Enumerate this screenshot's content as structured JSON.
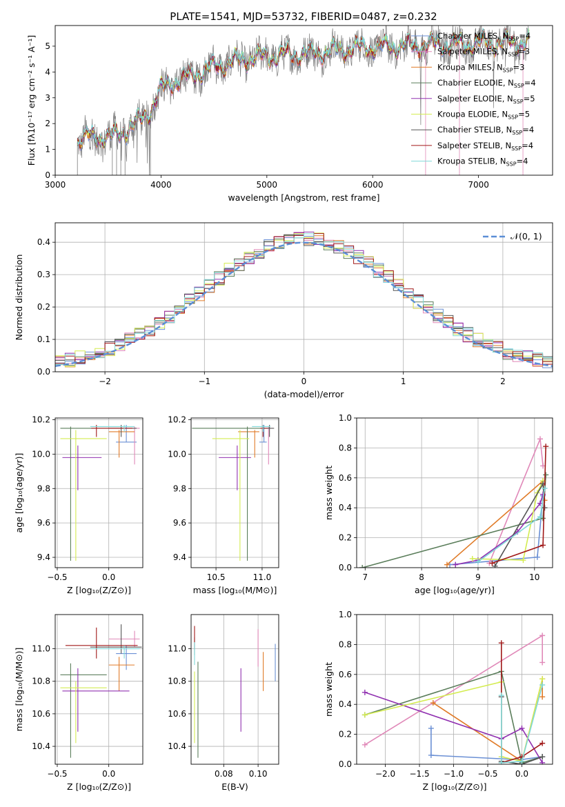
{
  "figure_title": "PLATE=1541, MJD=53732, FIBERID=0487, z=0.232",
  "model_colors": {
    "Chabrier MILES": "#6a8fd4",
    "Salpeter MILES": "#e088b8",
    "Kroupa MILES": "#e07b28",
    "Chabrier ELODIE": "#5a7d5a",
    "Salpeter ELODIE": "#9030b0",
    "Kroupa ELODIE": "#d4ec50",
    "Chabrier STELIB": "#555555",
    "Salpeter STELIB": "#a01818",
    "Kroupa STELIB": "#80d8d8"
  },
  "chart_data": [
    {
      "id": "spectrum",
      "type": "line",
      "xlabel": "wavelength [Angstrom, rest frame]",
      "ylabel": "Flux [fλ10⁻¹⁷ erg cm⁻² s⁻¹ A⁻¹]",
      "xlim": [
        3000,
        7700
      ],
      "ylim": [
        0,
        5.8
      ],
      "xticks": [
        3000,
        4000,
        5000,
        6000,
        7000
      ],
      "yticks": [
        0,
        1,
        2,
        3,
        4,
        5
      ],
      "legend_position": "top-right",
      "legend": [
        {
          "label": "Chabrier MILES, N",
          "sub": "SSP",
          "tail": "=4",
          "color": "#6a8fd4"
        },
        {
          "label": "Salpeter MILES, N",
          "sub": "SSP",
          "tail": "=3",
          "color": "#e088b8"
        },
        {
          "label": "Kroupa MILES, N",
          "sub": "SSP",
          "tail": "=3",
          "color": "#e07b28"
        },
        {
          "label": "Chabrier ELODIE, N",
          "sub": "SSP",
          "tail": "=4",
          "color": "#5a7d5a"
        },
        {
          "label": "Salpeter ELODIE, N",
          "sub": "SSP",
          "tail": "=5",
          "color": "#9030b0"
        },
        {
          "label": "Kroupa ELODIE, N",
          "sub": "SSP",
          "tail": "=5",
          "color": "#d4ec50"
        },
        {
          "label": "Chabrier STELIB, N",
          "sub": "SSP",
          "tail": "=4",
          "color": "#555555"
        },
        {
          "label": "Salpeter STELIB, N",
          "sub": "SSP",
          "tail": "=4",
          "color": "#a01818"
        },
        {
          "label": "Kroupa STELIB, N",
          "sub": "SSP",
          "tail": "=4",
          "color": "#80d8d8"
        }
      ],
      "continuum": {
        "x": [
          3220,
          3300,
          3400,
          3500,
          3600,
          3700,
          3800,
          3900,
          4000,
          4100,
          4200,
          4300,
          4400,
          4500,
          4600,
          4800,
          5000,
          5200,
          5400,
          5600,
          5800,
          6000,
          6200,
          6400,
          6600,
          6800,
          7000,
          7200,
          7400
        ],
        "y": [
          1.3,
          1.45,
          1.5,
          1.45,
          1.6,
          1.8,
          2.1,
          2.5,
          3.3,
          3.6,
          3.7,
          3.9,
          4.0,
          4.2,
          4.3,
          4.5,
          4.6,
          4.65,
          4.7,
          4.8,
          4.9,
          4.95,
          5.0,
          5.0,
          5.05,
          5.05,
          5.1,
          5.1,
          5.15
        ]
      },
      "data_x_range": [
        3210,
        7480
      ]
    },
    {
      "id": "residuals",
      "type": "histogram",
      "xlabel": "(data-model)/error",
      "ylabel": "Normed distribution",
      "xlim": [
        -2.5,
        2.5
      ],
      "ylim": [
        0,
        0.46
      ],
      "xticks": [
        -2,
        -1,
        0,
        1,
        2
      ],
      "yticks": [
        0.0,
        0.1,
        0.2,
        0.3,
        0.4
      ],
      "legend": "𝒩(0, 1)",
      "legend_position": "top-right",
      "reference_curve": "normal(0,1)",
      "bin_width": 0.1
    },
    {
      "id": "age_vs_Z",
      "type": "errorbar",
      "xlabel": "Z [log₁₀(Z/Z⊙)]",
      "ylabel": "age  [log₁₀(age/yr)]",
      "xlim": [
        -0.52,
        0.33
      ],
      "ylim": [
        9.34,
        10.21
      ],
      "xticks": [
        -0.5,
        0.0
      ],
      "yticks": [
        9.4,
        9.6,
        9.8,
        10.0,
        10.2
      ],
      "points": [
        {
          "model": "Chabrier MILES",
          "x": 0.17,
          "xerr": [
            0.1,
            0.1
          ],
          "y": 10.07,
          "yerr": [
            0.0,
            0.1
          ]
        },
        {
          "model": "Salpeter MILES",
          "x": 0.25,
          "xerr": [
            0.25,
            0.05
          ],
          "y": 10.15,
          "yerr": [
            0.21,
            0.01
          ]
        },
        {
          "model": "Kroupa MILES",
          "x": 0.1,
          "xerr": [
            0.1,
            0.15
          ],
          "y": 10.13,
          "yerr": [
            0.15,
            0.01
          ]
        },
        {
          "model": "Chabrier ELODIE",
          "x": -0.37,
          "xerr": [
            0.1,
            0.6
          ],
          "y": 10.15,
          "yerr": [
            0.77,
            0.01
          ]
        },
        {
          "model": "Salpeter ELODIE",
          "x": -0.3,
          "xerr": [
            0.15,
            0.23
          ],
          "y": 9.98,
          "yerr": [
            0.19,
            0.07
          ]
        },
        {
          "model": "Kroupa ELODIE",
          "x": -0.32,
          "xerr": [
            0.15,
            0.3
          ],
          "y": 10.09,
          "yerr": [
            0.71,
            0.05
          ]
        },
        {
          "model": "Chabrier STELIB",
          "x": 0.12,
          "xerr": [
            0.12,
            0.15
          ],
          "y": 10.15,
          "yerr": [
            0.05,
            0.02
          ]
        },
        {
          "model": "Salpeter STELIB",
          "x": -0.12,
          "xerr": [
            0.05,
            0.35
          ],
          "y": 10.15,
          "yerr": [
            0.05,
            0.02
          ]
        },
        {
          "model": "Kroupa STELIB",
          "x": 0.15,
          "xerr": [
            0.33,
            0.1
          ],
          "y": 10.16,
          "yerr": [
            0.03,
            0.01
          ]
        }
      ]
    },
    {
      "id": "age_vs_mass",
      "type": "errorbar",
      "xlabel": "mass [log₁₀(M/M⊙)]",
      "ylabel": "",
      "xlim": [
        10.23,
        11.18
      ],
      "ylim": [
        9.34,
        10.21
      ],
      "xticks": [
        10.5,
        11.0
      ],
      "yticks": [
        9.4,
        9.6,
        9.8,
        10.0,
        10.2
      ],
      "points": [
        {
          "model": "Chabrier MILES",
          "x": 11.02,
          "xerr": [
            0.05,
            0.03
          ],
          "y": 10.07,
          "yerr": [
            0.0,
            0.1
          ]
        },
        {
          "model": "Salpeter MILES",
          "x": 11.07,
          "xerr": [
            0.05,
            0.05
          ],
          "y": 10.15,
          "yerr": [
            0.21,
            0.01
          ]
        },
        {
          "model": "Kroupa MILES",
          "x": 10.92,
          "xerr": [
            0.18,
            0.05
          ],
          "y": 10.13,
          "yerr": [
            0.15,
            0.01
          ]
        },
        {
          "model": "Chabrier ELODIE",
          "x": 10.84,
          "xerr": [
            0.6,
            0.25
          ],
          "y": 10.15,
          "yerr": [
            0.77,
            0.01
          ]
        },
        {
          "model": "Salpeter ELODIE",
          "x": 10.73,
          "xerr": [
            0.2,
            0.15
          ],
          "y": 9.98,
          "yerr": [
            0.19,
            0.07
          ]
        },
        {
          "model": "Kroupa ELODIE",
          "x": 10.76,
          "xerr": [
            0.3,
            0.1
          ],
          "y": 10.09,
          "yerr": [
            0.71,
            0.05
          ]
        },
        {
          "model": "Chabrier STELIB",
          "x": 11.08,
          "xerr": [
            0.05,
            0.05
          ],
          "y": 10.15,
          "yerr": [
            0.05,
            0.02
          ]
        },
        {
          "model": "Salpeter STELIB",
          "x": 11.01,
          "xerr": [
            0.03,
            0.05
          ],
          "y": 10.15,
          "yerr": [
            0.05,
            0.02
          ]
        },
        {
          "model": "Kroupa STELIB",
          "x": 11.01,
          "xerr": [
            0.12,
            0.08
          ],
          "y": 10.16,
          "yerr": [
            0.03,
            0.01
          ]
        }
      ]
    },
    {
      "id": "weight_vs_age",
      "type": "line",
      "xlabel": "age  [log₁₀(age/yr)]",
      "ylabel": "mass weight",
      "xlim": [
        6.85,
        10.32
      ],
      "ylim": [
        0.0,
        1.0
      ],
      "xticks": [
        7,
        8,
        9,
        10
      ],
      "yticks": [
        0.0,
        0.2,
        0.4,
        0.6,
        0.8,
        1.0
      ],
      "series": [
        {
          "model": "Chabrier MILES",
          "x": [
            8.5,
            10.05,
            10.15
          ],
          "y": [
            0.02,
            0.07,
            0.48
          ]
        },
        {
          "model": "Salpeter MILES",
          "x": [
            9.2,
            10.1,
            10.15
          ],
          "y": [
            0.03,
            0.86,
            0.68
          ]
        },
        {
          "model": "Kroupa MILES",
          "x": [
            8.45,
            10.15,
            10.18
          ],
          "y": [
            0.02,
            0.58,
            0.45
          ]
        },
        {
          "model": "Chabrier ELODIE",
          "x": [
            6.95,
            10.15,
            10.2
          ],
          "y": [
            0.0,
            0.33,
            0.62
          ]
        },
        {
          "model": "Salpeter ELODIE",
          "x": [
            8.6,
            9.0,
            9.7,
            10.1,
            10.15
          ],
          "y": [
            0.02,
            0.05,
            0.24,
            0.43,
            0.49
          ]
        },
        {
          "model": "Kroupa ELODIE",
          "x": [
            8.9,
            9.8,
            10.05,
            10.15
          ],
          "y": [
            0.06,
            0.05,
            0.5,
            0.58
          ]
        },
        {
          "model": "Chabrier STELIB",
          "x": [
            9.3,
            10.15,
            10.18
          ],
          "y": [
            0.01,
            0.56,
            0.4
          ]
        },
        {
          "model": "Salpeter STELIB",
          "x": [
            9.25,
            10.15,
            10.2
          ],
          "y": [
            0.03,
            0.15,
            0.81
          ]
        },
        {
          "model": "Kroupa STELIB",
          "x": [
            9.0,
            10.1,
            10.18
          ],
          "y": [
            0.04,
            0.34,
            0.53
          ]
        }
      ]
    },
    {
      "id": "mass_vs_Z",
      "type": "errorbar",
      "xlabel": "Z [log₁₀(Z/Z⊙)]",
      "ylabel": "mass [log₁₀(M/M⊙)]",
      "xlim": [
        -0.52,
        0.33
      ],
      "ylim": [
        10.29,
        11.21
      ],
      "xticks": [
        -0.5,
        0.0
      ],
      "yticks": [
        10.4,
        10.6,
        10.8,
        11.0
      ],
      "points": [
        {
          "model": "Chabrier MILES",
          "x": 0.17,
          "xerr": [
            0.1,
            0.1
          ],
          "y": 10.97,
          "yerr": [
            0.1,
            0.05
          ]
        },
        {
          "model": "Salpeter MILES",
          "x": 0.25,
          "xerr": [
            0.25,
            0.05
          ],
          "y": 11.06,
          "yerr": [
            0.05,
            0.05
          ]
        },
        {
          "model": "Kroupa MILES",
          "x": 0.1,
          "xerr": [
            0.1,
            0.15
          ],
          "y": 10.9,
          "yerr": [
            0.16,
            0.05
          ]
        },
        {
          "model": "Chabrier ELODIE",
          "x": -0.37,
          "xerr": [
            0.1,
            0.35
          ],
          "y": 10.84,
          "yerr": [
            0.51,
            0.07
          ]
        },
        {
          "model": "Salpeter ELODIE",
          "x": -0.3,
          "xerr": [
            0.15,
            0.5
          ],
          "y": 10.74,
          "yerr": [
            0.25,
            0.14
          ]
        },
        {
          "model": "Kroupa ELODIE",
          "x": -0.32,
          "xerr": [
            0.15,
            0.3
          ],
          "y": 10.76,
          "yerr": [
            0.34,
            0.04
          ]
        },
        {
          "model": "Chabrier STELIB",
          "x": 0.12,
          "xerr": [
            0.3,
            0.2
          ],
          "y": 11.01,
          "yerr": [
            0.04,
            0.14
          ]
        },
        {
          "model": "Salpeter STELIB",
          "x": -0.12,
          "xerr": [
            0.3,
            0.4
          ],
          "y": 11.02,
          "yerr": [
            0.08,
            0.11
          ]
        },
        {
          "model": "Kroupa STELIB",
          "x": 0.15,
          "xerr": [
            0.33,
            0.15
          ],
          "y": 11.0,
          "yerr": [
            0.06,
            0.02
          ]
        }
      ]
    },
    {
      "id": "mass_vs_ebv",
      "type": "errorbar",
      "xlabel": "E(B-V)",
      "ylabel": "",
      "xlim": [
        0.061,
        0.112
      ],
      "ylim": [
        10.29,
        11.21
      ],
      "xticks": [
        0.08,
        0.1
      ],
      "yticks": [
        10.4,
        10.6,
        10.8,
        11.0
      ],
      "points": [
        {
          "model": "Chabrier MILES",
          "x": 0.11,
          "xerr": [
            0,
            0
          ],
          "y": 10.97,
          "yerr": [
            0.17,
            0.06
          ]
        },
        {
          "model": "Salpeter MILES",
          "x": 0.1,
          "xerr": [
            0,
            0
          ],
          "y": 11.06,
          "yerr": [
            0.17,
            0.06
          ]
        },
        {
          "model": "Kroupa MILES",
          "x": 0.103,
          "xerr": [
            0,
            0
          ],
          "y": 10.9,
          "yerr": [
            0.16,
            0.08
          ]
        },
        {
          "model": "Chabrier ELODIE",
          "x": 0.065,
          "xerr": [
            0,
            0
          ],
          "y": 10.84,
          "yerr": [
            0.51,
            0.08
          ]
        },
        {
          "model": "Salpeter ELODIE",
          "x": 0.09,
          "xerr": [
            0,
            0
          ],
          "y": 10.74,
          "yerr": [
            0.25,
            0.14
          ]
        },
        {
          "model": "Kroupa ELODIE",
          "x": 0.063,
          "xerr": [
            0,
            0
          ],
          "y": 10.76,
          "yerr": [
            0.34,
            0.1
          ]
        },
        {
          "model": "Chabrier STELIB",
          "x": 0.063,
          "xerr": [
            0,
            0
          ],
          "y": 11.01,
          "yerr": [
            0.05,
            0.06
          ]
        },
        {
          "model": "Salpeter STELIB",
          "x": 0.063,
          "xerr": [
            0,
            0
          ],
          "y": 11.05,
          "yerr": [
            0.05,
            0.09
          ]
        },
        {
          "model": "Kroupa STELIB",
          "x": 0.063,
          "xerr": [
            0,
            0
          ],
          "y": 10.98,
          "yerr": [
            0.08,
            0.06
          ]
        }
      ]
    },
    {
      "id": "weight_vs_Z",
      "type": "line",
      "xlabel": "Z [log₁₀(Z/Z⊙)]",
      "ylabel": "mass weight",
      "xlim": [
        -2.42,
        0.45
      ],
      "ylim": [
        0.0,
        1.0
      ],
      "xticks": [
        -2.0,
        -1.5,
        -1.0,
        -0.5,
        0.0
      ],
      "yticks": [
        0.0,
        0.2,
        0.4,
        0.6,
        0.8,
        1.0
      ],
      "series": [
        {
          "model": "Chabrier MILES",
          "x": [
            -1.33,
            -1.33,
            -0.02,
            0.3
          ],
          "y": [
            0.24,
            0.06,
            0.03,
            0.05
          ]
        },
        {
          "model": "Salpeter MILES",
          "x": [
            -2.3,
            0.3,
            0.3
          ],
          "y": [
            0.13,
            0.86,
            0.68
          ]
        },
        {
          "model": "Kroupa MILES",
          "x": [
            -1.3,
            0.0,
            0.3,
            0.3
          ],
          "y": [
            0.41,
            0.02,
            0.57,
            0.45
          ]
        },
        {
          "model": "Chabrier ELODIE",
          "x": [
            -2.3,
            -0.3,
            0.0,
            0.3
          ],
          "y": [
            0.33,
            0.62,
            0.01,
            0.05
          ]
        },
        {
          "model": "Salpeter ELODIE",
          "x": [
            -2.3,
            -0.3,
            0.0,
            0.3
          ],
          "y": [
            0.48,
            0.17,
            0.24,
            0.01
          ]
        },
        {
          "model": "Kroupa ELODIE",
          "x": [
            -2.3,
            -0.3,
            -0.3,
            0.0,
            0.3
          ],
          "y": [
            0.33,
            0.55,
            0.05,
            0.02,
            0.57
          ]
        },
        {
          "model": "Chabrier STELIB",
          "x": [
            -0.3,
            -0.3,
            0.0,
            0.3
          ],
          "y": [
            0.45,
            0.02,
            0.0,
            0.05
          ]
        },
        {
          "model": "Salpeter STELIB",
          "x": [
            -0.3,
            -0.3,
            0.0,
            0.3
          ],
          "y": [
            0.81,
            0.01,
            0.05,
            0.14
          ]
        },
        {
          "model": "Kroupa STELIB",
          "x": [
            -0.3,
            -0.3,
            0.0,
            0.3
          ],
          "y": [
            0.46,
            0.01,
            0.02,
            0.53
          ]
        }
      ]
    }
  ]
}
